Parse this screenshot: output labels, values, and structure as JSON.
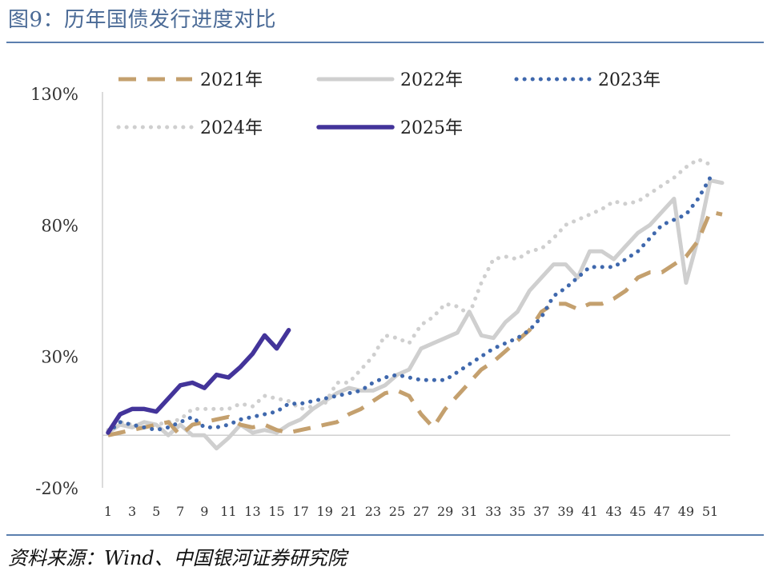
{
  "title": "图9：历年国债发行进度对比",
  "source": "资料来源：Wind、中国银河证券研究院",
  "colors": {
    "s2021": "#c4a06e",
    "s2022": "#cfcfcf",
    "s2023": "#3f68ad",
    "s2024": "#cfcfcf",
    "s2025": "#43349a",
    "rule": "#5b7fae"
  },
  "chart_data": {
    "type": "line",
    "title": "",
    "xlabel": "",
    "ylabel": "",
    "ylim": [
      -20,
      130
    ],
    "yticks": [
      "130%",
      "80%",
      "30%",
      "-20%"
    ],
    "ytick_values": [
      130,
      80,
      30,
      -20
    ],
    "xtick_labels": [
      "1",
      "3",
      "5",
      "7",
      "9",
      "11",
      "13",
      "15",
      "17",
      "19",
      "21",
      "23",
      "25",
      "27",
      "29",
      "31",
      "33",
      "35",
      "37",
      "39",
      "41",
      "43",
      "45",
      "47",
      "49",
      "51"
    ],
    "xtick_values": [
      1,
      3,
      5,
      7,
      9,
      11,
      13,
      15,
      17,
      19,
      21,
      23,
      25,
      27,
      29,
      31,
      33,
      35,
      37,
      39,
      41,
      43,
      45,
      47,
      49,
      51
    ],
    "legend_position": "top",
    "series": [
      {
        "name": "2021年",
        "style": "dashed",
        "x": [
          1,
          2,
          3,
          4,
          5,
          6,
          7,
          8,
          9,
          10,
          11,
          12,
          13,
          14,
          15,
          16,
          17,
          18,
          19,
          20,
          21,
          22,
          23,
          24,
          25,
          26,
          27,
          28,
          29,
          30,
          31,
          32,
          33,
          34,
          35,
          36,
          37,
          38,
          39,
          40,
          41,
          42,
          43,
          44,
          45,
          46,
          47,
          48,
          49,
          50,
          51,
          52
        ],
        "y": [
          0,
          1,
          2,
          3,
          4,
          5,
          0,
          4,
          5,
          6,
          7,
          4,
          3,
          4,
          2,
          1,
          2,
          3,
          4,
          5,
          8,
          10,
          13,
          16,
          17,
          15,
          8,
          3,
          10,
          15,
          20,
          25,
          28,
          32,
          36,
          40,
          47,
          50,
          50,
          48,
          50,
          50,
          52,
          55,
          60,
          62,
          62,
          65,
          68,
          74,
          85,
          84
        ]
      },
      {
        "name": "2022年",
        "style": "solid",
        "x": [
          1,
          2,
          3,
          4,
          5,
          6,
          7,
          8,
          9,
          10,
          11,
          12,
          13,
          14,
          15,
          16,
          17,
          18,
          19,
          20,
          21,
          22,
          23,
          24,
          25,
          26,
          27,
          28,
          29,
          30,
          31,
          32,
          33,
          34,
          35,
          36,
          37,
          38,
          39,
          40,
          41,
          42,
          43,
          44,
          45,
          46,
          47,
          48,
          49,
          50,
          51,
          52
        ],
        "y": [
          1,
          4,
          3,
          5,
          4,
          0,
          4,
          0,
          0,
          -5,
          -1,
          4,
          1,
          2,
          1,
          4,
          6,
          10,
          13,
          16,
          18,
          17,
          17,
          19,
          23,
          25,
          33,
          35,
          37,
          39,
          47,
          38,
          37,
          43,
          47,
          55,
          60,
          65,
          65,
          60,
          70,
          70,
          67,
          72,
          77,
          80,
          85,
          90,
          58,
          75,
          97,
          96
        ]
      },
      {
        "name": "2023年",
        "style": "dotted",
        "x": [
          1,
          2,
          3,
          4,
          5,
          6,
          7,
          8,
          9,
          10,
          11,
          12,
          13,
          14,
          15,
          16,
          17,
          18,
          19,
          20,
          21,
          22,
          23,
          24,
          25,
          26,
          27,
          28,
          29,
          30,
          31,
          32,
          33,
          34,
          35,
          36,
          37,
          38,
          39,
          40,
          41,
          42,
          43,
          44,
          45,
          46,
          47,
          48,
          49,
          50,
          51
        ],
        "y": [
          1,
          5,
          4,
          3,
          2,
          3,
          5,
          7,
          3,
          3,
          4,
          6,
          7,
          8,
          9,
          12,
          12,
          13,
          14,
          15,
          16,
          17,
          20,
          22,
          23,
          22,
          21,
          21,
          21,
          24,
          27,
          30,
          33,
          35,
          37,
          40,
          45,
          53,
          56,
          60,
          64,
          64,
          64,
          67,
          70,
          75,
          80,
          82,
          84,
          90,
          98
        ]
      },
      {
        "name": "2024年",
        "style": "dotted",
        "x": [
          1,
          2,
          3,
          4,
          5,
          6,
          7,
          8,
          9,
          10,
          11,
          12,
          13,
          14,
          15,
          16,
          17,
          18,
          19,
          20,
          21,
          22,
          23,
          24,
          25,
          26,
          27,
          28,
          29,
          30,
          31,
          32,
          33,
          34,
          35,
          36,
          37,
          38,
          39,
          40,
          41,
          42,
          43,
          44,
          45,
          46,
          47,
          48,
          49,
          50,
          51
        ],
        "y": [
          2,
          5,
          4,
          3,
          4,
          5,
          6,
          10,
          10,
          10,
          10,
          12,
          11,
          15,
          14,
          13,
          10,
          11,
          12,
          20,
          20,
          25,
          30,
          38,
          37,
          35,
          42,
          45,
          50,
          49,
          46,
          58,
          67,
          68,
          67,
          70,
          71,
          75,
          80,
          82,
          84,
          86,
          89,
          88,
          89,
          92,
          95,
          98,
          102,
          105,
          103
        ]
      },
      {
        "name": "2025年",
        "style": "solid-thick",
        "x": [
          1,
          2,
          3,
          4,
          5,
          6,
          7,
          8,
          9,
          10,
          11,
          12,
          13,
          14,
          15,
          16
        ],
        "y": [
          1,
          8,
          10,
          10,
          9,
          14,
          19,
          20,
          18,
          23,
          22,
          26,
          31,
          38,
          33,
          40
        ]
      }
    ]
  }
}
